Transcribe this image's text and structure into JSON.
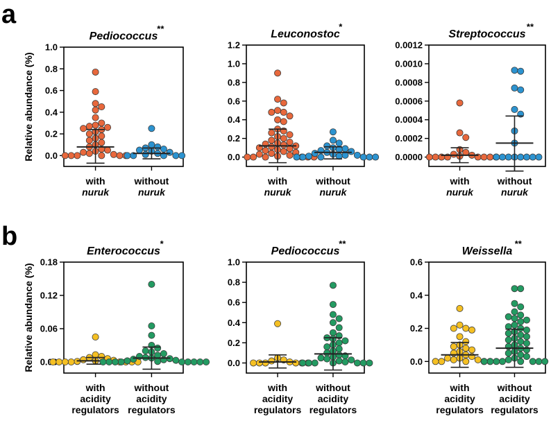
{
  "panel_labels": [
    "a",
    "b"
  ],
  "colors": {
    "with_nuruk": "#e8683c",
    "without_nuruk": "#2c93d0",
    "with_acidity": "#f5c023",
    "without_acidity": "#239b62",
    "axis": "#000000",
    "marker_edge": "#3a3a3a"
  },
  "chart_data": [
    {
      "type": "scatter",
      "panel": "a",
      "title": "Pediococcus",
      "significance": "**",
      "ylabel": "Relative abundance (%)",
      "ylim": [
        -0.1,
        1.0
      ],
      "yticks": [
        0.0,
        0.2,
        0.4,
        0.6,
        0.8,
        1.0
      ],
      "tick_labels": [
        "0.0",
        "0.2",
        "0.4",
        "0.6",
        "0.8",
        "1.0"
      ],
      "series": [
        {
          "name": "with nuruk",
          "label_lines": [
            "with",
            "nuruk"
          ],
          "color": "#e8683c",
          "mean": 0.08,
          "sd_upper": 0.24,
          "sd_lower": -0.07,
          "values": [
            0.77,
            0.59,
            0.48,
            0.45,
            0.42,
            0.35,
            0.3,
            0.28,
            0.27,
            0.26,
            0.25,
            0.24,
            0.22,
            0.2,
            0.18,
            0.16,
            0.14,
            0.12,
            0.1,
            0.08,
            0.06,
            0.05,
            0.04,
            0.03,
            0.02,
            0.01,
            0.0,
            0.0,
            0.0,
            0.0,
            0.0,
            0.0
          ]
        },
        {
          "name": "without nuruk",
          "label_lines": [
            "without",
            "nuruk"
          ],
          "color": "#2c93d0",
          "mean": 0.02,
          "sd_upper": 0.07,
          "sd_lower": -0.03,
          "values": [
            0.25,
            0.1,
            0.08,
            0.07,
            0.06,
            0.05,
            0.04,
            0.03,
            0.02,
            0.01,
            0.0,
            0.0,
            0.0,
            0.0,
            0.0
          ]
        }
      ]
    },
    {
      "type": "scatter",
      "panel": "a",
      "title": "Leuconostoc",
      "significance": "*",
      "ylabel": "",
      "ylim": [
        -0.1,
        1.2
      ],
      "yticks": [
        0.0,
        0.2,
        0.4,
        0.6,
        0.8,
        1.0,
        1.2
      ],
      "tick_labels": [
        "0.0",
        "0.2",
        "0.4",
        "0.6",
        "0.8",
        "1.0",
        "1.2"
      ],
      "series": [
        {
          "name": "with nuruk",
          "label_lines": [
            "with",
            "nuruk"
          ],
          "color": "#e8683c",
          "mean": 0.12,
          "sd_upper": 0.3,
          "sd_lower": -0.06,
          "values": [
            0.9,
            0.62,
            0.58,
            0.5,
            0.48,
            0.48,
            0.44,
            0.4,
            0.38,
            0.3,
            0.28,
            0.26,
            0.24,
            0.22,
            0.2,
            0.18,
            0.16,
            0.15,
            0.14,
            0.13,
            0.12,
            0.11,
            0.1,
            0.09,
            0.08,
            0.07,
            0.06,
            0.05,
            0.04,
            0.03,
            0.02,
            0.01,
            0.0,
            0.0,
            0.0,
            0.0,
            0.0,
            0.0
          ]
        },
        {
          "name": "without nuruk",
          "label_lines": [
            "without",
            "nuruk"
          ],
          "color": "#2c93d0",
          "mean": 0.05,
          "sd_upper": 0.11,
          "sd_lower": -0.02,
          "values": [
            0.27,
            0.18,
            0.15,
            0.12,
            0.1,
            0.09,
            0.08,
            0.07,
            0.06,
            0.05,
            0.04,
            0.03,
            0.02,
            0.02,
            0.01,
            0.01,
            0.0,
            0.0,
            0.0,
            0.0,
            0.0,
            0.0
          ]
        }
      ]
    },
    {
      "type": "scatter",
      "panel": "a",
      "title": "Streptococcus",
      "significance": "**",
      "ylabel": "",
      "ylim": [
        -0.0001,
        0.0012
      ],
      "yticks": [
        0.0,
        0.0002,
        0.0004,
        0.0006,
        0.0008,
        0.001,
        0.0012
      ],
      "tick_labels": [
        "0.0000",
        "0.0002",
        "0.0004",
        "0.0006",
        "0.0008",
        "0.0010",
        "0.0012"
      ],
      "series": [
        {
          "name": "with nuruk",
          "label_lines": [
            "with",
            "nuruk"
          ],
          "color": "#e8683c",
          "mean": 2e-05,
          "sd_upper": 0.0001,
          "sd_lower": -6e-05,
          "values": [
            0.00058,
            0.00026,
            0.00021,
            8e-05,
            5e-05,
            3e-05,
            2e-05,
            1e-05,
            0.0,
            0.0,
            0.0,
            0.0,
            0.0,
            0.0,
            0.0,
            0.0
          ]
        },
        {
          "name": "without nuruk",
          "label_lines": [
            "without",
            "nuruk"
          ],
          "color": "#2c93d0",
          "mean": 0.00015,
          "sd_upper": 0.00044,
          "sd_lower": -0.00015,
          "values": [
            0.00093,
            0.00092,
            0.00074,
            0.00072,
            0.00051,
            0.00046,
            0.00028,
            0.00015,
            0.0,
            0.0,
            0.0,
            0.0,
            0.0,
            0.0,
            0.0,
            0.0
          ]
        }
      ]
    },
    {
      "type": "scatter",
      "panel": "b",
      "title": "Enterococcus",
      "significance": "*",
      "ylabel": "Relative abundance (%)",
      "ylim": [
        -0.02,
        0.18
      ],
      "yticks": [
        0.0,
        0.06,
        0.12,
        0.18
      ],
      "tick_labels": [
        "0.00",
        "0.06",
        "0.12",
        "0.18"
      ],
      "series": [
        {
          "name": "with acidity regulators",
          "label_lines": [
            "with",
            "acidity",
            "regulators"
          ],
          "color": "#f5c023",
          "mean": 0.002,
          "sd_upper": 0.008,
          "sd_lower": -0.004,
          "values": [
            0.045,
            0.013,
            0.01,
            0.008,
            0.006,
            0.004,
            0.003,
            0.002,
            0.001,
            0.0,
            0.0,
            0.0,
            0.0,
            0.0,
            0.0,
            0.0,
            0.0
          ]
        },
        {
          "name": "without acidity regulators",
          "label_lines": [
            "without",
            "acidity",
            "regulators"
          ],
          "color": "#239b62",
          "mean": 0.007,
          "sd_upper": 0.027,
          "sd_lower": -0.013,
          "values": [
            0.14,
            0.065,
            0.048,
            0.03,
            0.025,
            0.02,
            0.018,
            0.015,
            0.012,
            0.01,
            0.008,
            0.007,
            0.006,
            0.005,
            0.004,
            0.003,
            0.002,
            0.001,
            0.0,
            0.0,
            0.0,
            0.0,
            0.0,
            0.0,
            0.0,
            0.0,
            0.0
          ]
        }
      ]
    },
    {
      "type": "scatter",
      "panel": "b",
      "title": "Pediococcus",
      "significance": "**",
      "ylabel": "",
      "ylim": [
        -0.1,
        1.0
      ],
      "yticks": [
        0.0,
        0.2,
        0.4,
        0.6,
        0.8,
        1.0
      ],
      "tick_labels": [
        "0.0",
        "0.2",
        "0.4",
        "0.6",
        "0.8",
        "1.0"
      ],
      "series": [
        {
          "name": "with acidity regulators",
          "label_lines": [
            "with",
            "acidity",
            "regulators"
          ],
          "color": "#f5c023",
          "mean": 0.01,
          "sd_upper": 0.08,
          "sd_lower": -0.05,
          "values": [
            0.39,
            0.05,
            0.03,
            0.02,
            0.01,
            0.0,
            0.0,
            0.0,
            0.0,
            0.0,
            0.0
          ]
        },
        {
          "name": "without acidity regulators",
          "label_lines": [
            "without",
            "acidity",
            "regulators"
          ],
          "color": "#239b62",
          "mean": 0.09,
          "sd_upper": 0.25,
          "sd_lower": -0.07,
          "values": [
            0.77,
            0.58,
            0.48,
            0.44,
            0.4,
            0.35,
            0.3,
            0.27,
            0.25,
            0.24,
            0.22,
            0.2,
            0.18,
            0.16,
            0.14,
            0.12,
            0.1,
            0.08,
            0.07,
            0.06,
            0.05,
            0.04,
            0.03,
            0.02,
            0.01,
            0.0,
            0.0,
            0.0,
            0.0,
            0.0,
            0.0,
            0.0
          ]
        }
      ]
    },
    {
      "type": "scatter",
      "panel": "b",
      "title": "Weissella",
      "significance": "**",
      "ylabel": "",
      "ylim": [
        -0.07,
        0.6
      ],
      "yticks": [
        0.0,
        0.2,
        0.4,
        0.6
      ],
      "tick_labels": [
        "0.0",
        "0.2",
        "0.4",
        "0.6"
      ],
      "series": [
        {
          "name": "with acidity regulators",
          "label_lines": [
            "with",
            "acidity",
            "regulators"
          ],
          "color": "#f5c023",
          "mean": 0.04,
          "sd_upper": 0.115,
          "sd_lower": -0.035,
          "values": [
            0.32,
            0.22,
            0.2,
            0.2,
            0.19,
            0.15,
            0.12,
            0.1,
            0.09,
            0.08,
            0.07,
            0.06,
            0.05,
            0.04,
            0.03,
            0.02,
            0.02,
            0.01,
            0.01,
            0.0,
            0.0,
            0.0,
            0.0,
            0.0
          ]
        },
        {
          "name": "without acidity regulators",
          "label_lines": [
            "without",
            "acidity",
            "regulators"
          ],
          "color": "#239b62",
          "mean": 0.08,
          "sd_upper": 0.195,
          "sd_lower": -0.035,
          "values": [
            0.44,
            0.44,
            0.35,
            0.33,
            0.3,
            0.28,
            0.27,
            0.26,
            0.25,
            0.24,
            0.22,
            0.21,
            0.2,
            0.19,
            0.18,
            0.17,
            0.16,
            0.15,
            0.14,
            0.13,
            0.12,
            0.11,
            0.1,
            0.09,
            0.08,
            0.07,
            0.06,
            0.05,
            0.04,
            0.03,
            0.02,
            0.01,
            0.0,
            0.0,
            0.0,
            0.0,
            0.0,
            0.0,
            0.0,
            0.0
          ]
        }
      ]
    }
  ]
}
